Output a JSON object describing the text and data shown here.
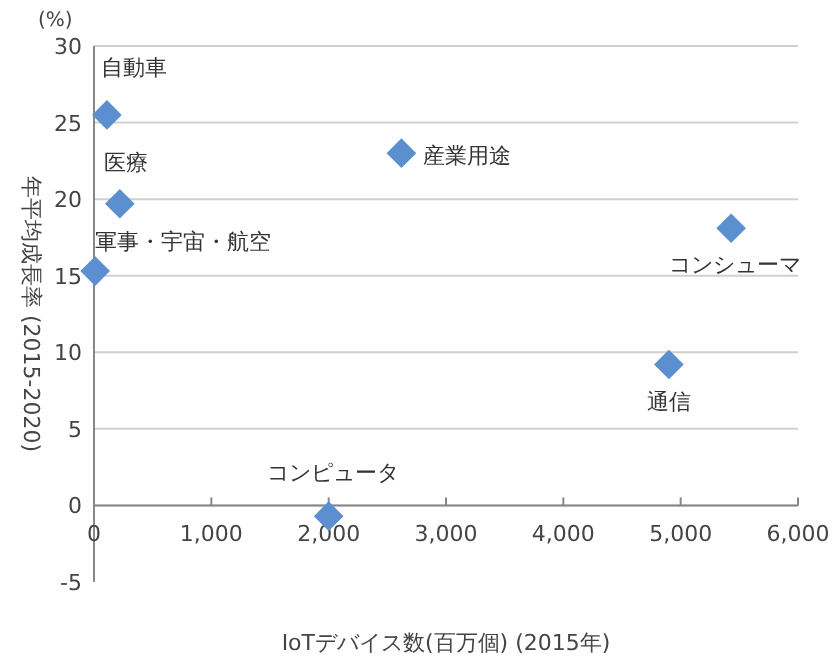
{
  "chart_data": {
    "type": "scatter",
    "xlabel": "IoTデバイス数(百万個) (2015年)",
    "ylabel": "年平均成長率 (2015-2020)",
    "x": [
      110,
      220,
      10,
      2620,
      5430,
      4900,
      2000
    ],
    "series": [
      {
        "color": "#5b8fd0",
        "values": [
          25.5,
          19.7,
          15.3,
          23.0,
          18.1,
          9.2,
          -0.7
        ]
      }
    ],
    "xlim": [
      0,
      6000
    ],
    "xticks": [
      {
        "value": 0,
        "label": "0"
      },
      {
        "value": 1000,
        "label": "1,000"
      },
      {
        "value": 2000,
        "label": "2,000"
      },
      {
        "value": 3000,
        "label": "3,000"
      },
      {
        "value": 4000,
        "label": "4,000"
      },
      {
        "value": 5000,
        "label": "5,000"
      },
      {
        "value": 6000,
        "label": "6,000"
      }
    ],
    "ylim": [
      -5,
      30
    ],
    "yticks": [
      -5,
      0,
      5,
      10,
      15,
      20,
      25,
      30
    ],
    "grid": "y",
    "marker": "diamond",
    "annotations": [
      "(%)",
      {
        "text": "自動車",
        "x": 110,
        "y": 25.5
      },
      {
        "text": "医療",
        "x": 220,
        "y": 19.7
      },
      {
        "text": "軍事・宇宙・航空",
        "x": 10,
        "y": 15.3
      },
      {
        "text": "産業用途",
        "x": 2620,
        "y": 23.0
      },
      {
        "text": "コンシューマ",
        "x": 5430,
        "y": 18.1
      },
      {
        "text": "通信",
        "x": 4900,
        "y": 9.2
      },
      {
        "text": "コンピュータ",
        "x": 2000,
        "y": -0.7
      }
    ]
  }
}
